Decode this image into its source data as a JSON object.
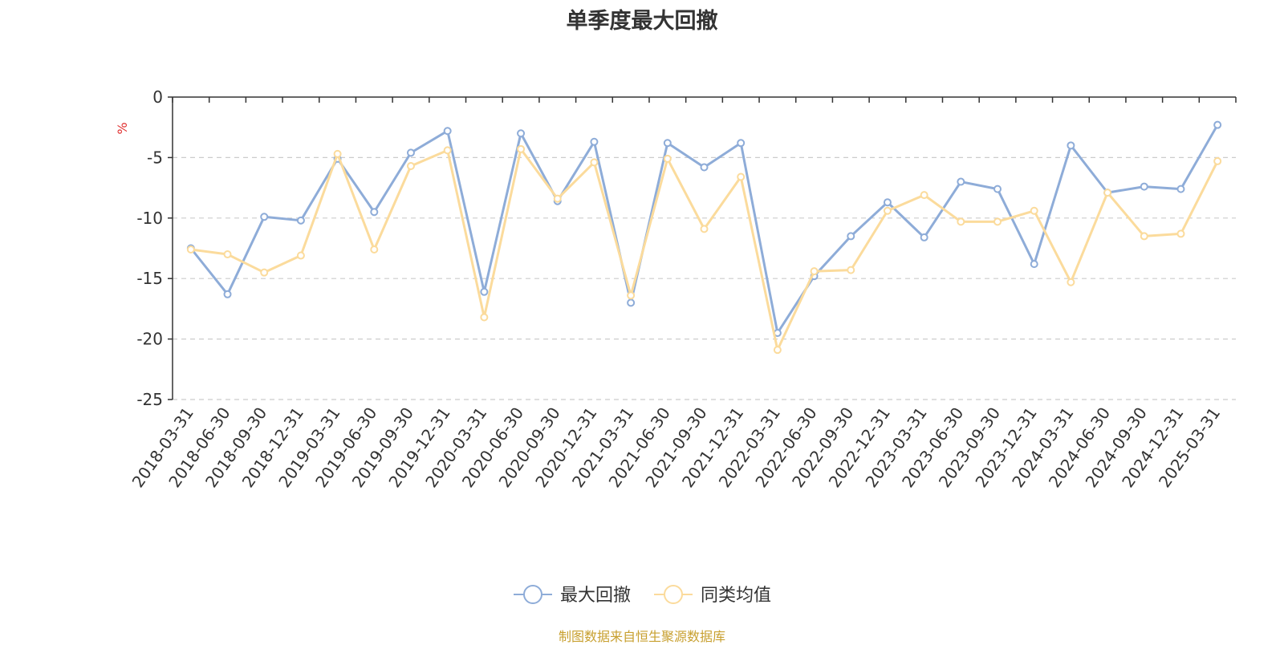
{
  "chart_data": {
    "type": "line",
    "title": "单季度最大回撤",
    "ylabel": "%",
    "ylim": [
      -25,
      0
    ],
    "yticks": [
      0,
      -5,
      -10,
      -15,
      -20,
      -25
    ],
    "grid": "horizontal dashed",
    "legend_position": "bottom",
    "categories": [
      "2018-03-31",
      "2018-06-30",
      "2018-09-30",
      "2018-12-31",
      "2019-03-31",
      "2019-06-30",
      "2019-09-30",
      "2019-12-31",
      "2020-03-31",
      "2020-06-30",
      "2020-09-30",
      "2020-12-31",
      "2021-03-31",
      "2021-06-30",
      "2021-09-30",
      "2021-12-31",
      "2022-03-31",
      "2022-06-30",
      "2022-09-30",
      "2022-12-31",
      "2023-03-31",
      "2023-06-30",
      "2023-09-30",
      "2023-12-31",
      "2024-03-31",
      "2024-06-30",
      "2024-09-30",
      "2024-12-31",
      "2025-03-31"
    ],
    "series": [
      {
        "name": "最大回撤",
        "color": "#8eacd8",
        "values": [
          -12.5,
          -16.3,
          -9.9,
          -10.2,
          -5.1,
          -9.5,
          -4.6,
          -2.8,
          -16.1,
          -3.0,
          -8.6,
          -3.7,
          -17.0,
          -3.8,
          -5.8,
          -3.8,
          -19.5,
          -14.8,
          -11.5,
          -8.7,
          -11.6,
          -7.0,
          -7.6,
          -13.8,
          -4.0,
          -7.9,
          -7.4,
          -7.6,
          -2.3
        ]
      },
      {
        "name": "同类均值",
        "color": "#fbdb9c",
        "values": [
          -12.6,
          -13.0,
          -14.5,
          -13.1,
          -4.7,
          -12.6,
          -5.7,
          -4.4,
          -18.2,
          -4.3,
          -8.4,
          -5.4,
          -16.4,
          -5.1,
          -10.9,
          -6.6,
          -20.9,
          -14.4,
          -14.3,
          -9.4,
          -8.1,
          -10.3,
          -10.3,
          -9.4,
          -15.3,
          -7.9,
          -11.5,
          -11.3,
          -5.3
        ]
      }
    ]
  },
  "source_text": "制图数据来自恒生聚源数据库"
}
